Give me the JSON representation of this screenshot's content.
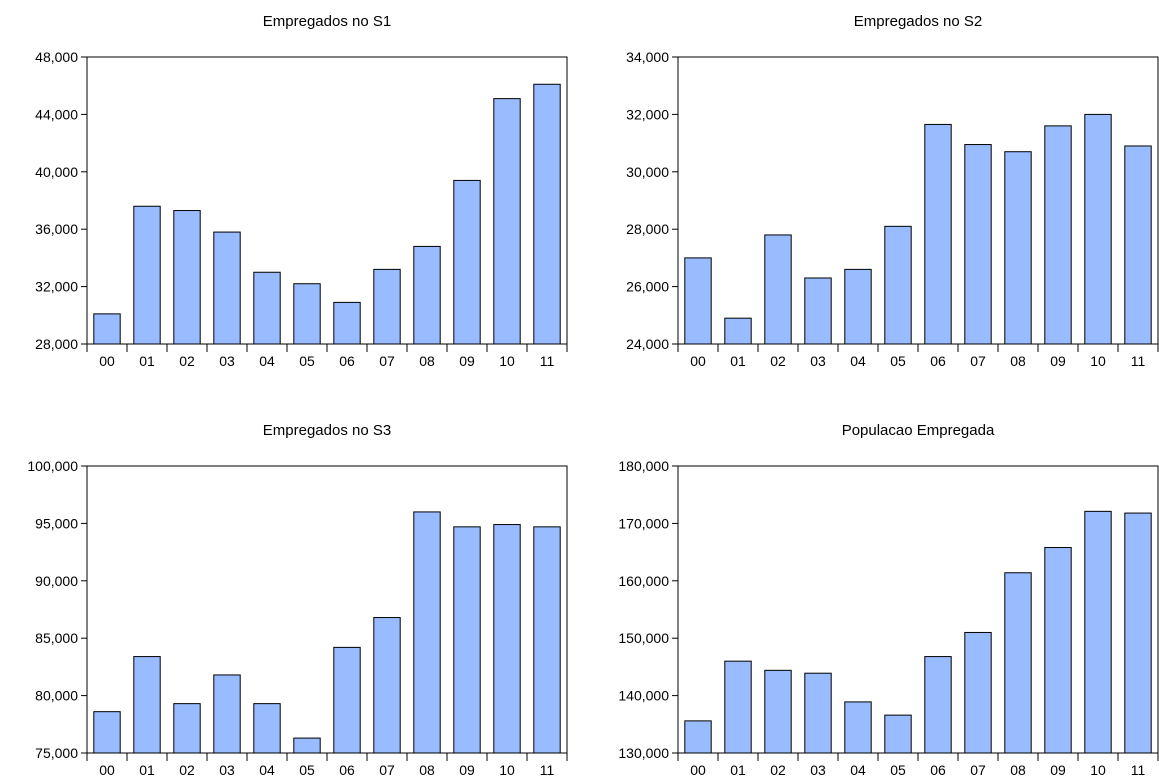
{
  "chart_data": [
    {
      "type": "bar",
      "title": "Empregados no S1",
      "categories": [
        "00",
        "01",
        "02",
        "03",
        "04",
        "05",
        "06",
        "07",
        "08",
        "09",
        "10",
        "11"
      ],
      "values": [
        30100,
        37600,
        37300,
        35800,
        33000,
        32200,
        30900,
        33200,
        34800,
        39400,
        45100,
        46100
      ],
      "ylim": [
        28000,
        48000
      ],
      "yticks": [
        28000,
        32000,
        36000,
        40000,
        44000,
        48000
      ],
      "ytick_labels": [
        "28,000",
        "32,000",
        "36,000",
        "40,000",
        "44,000",
        "48,000"
      ],
      "bar_color": "#99bbff",
      "grid": false
    },
    {
      "type": "bar",
      "title": "Empregados no S2",
      "categories": [
        "00",
        "01",
        "02",
        "03",
        "04",
        "05",
        "06",
        "07",
        "08",
        "09",
        "10",
        "11"
      ],
      "values": [
        27000,
        24900,
        27800,
        26300,
        26600,
        28100,
        31650,
        30950,
        30700,
        31600,
        32000,
        30900
      ],
      "ylim": [
        24000,
        34000
      ],
      "yticks": [
        24000,
        26000,
        28000,
        30000,
        32000,
        34000
      ],
      "ytick_labels": [
        "24,000",
        "26,000",
        "28,000",
        "30,000",
        "32,000",
        "34,000"
      ],
      "bar_color": "#99bbff",
      "grid": false
    },
    {
      "type": "bar",
      "title": "Empregados no S3",
      "categories": [
        "00",
        "01",
        "02",
        "03",
        "04",
        "05",
        "06",
        "07",
        "08",
        "09",
        "10",
        "11"
      ],
      "values": [
        78600,
        83400,
        79300,
        81800,
        79300,
        76300,
        84200,
        86800,
        96000,
        94700,
        94900,
        94700
      ],
      "ylim": [
        75000,
        100000
      ],
      "yticks": [
        75000,
        80000,
        85000,
        90000,
        95000,
        100000
      ],
      "ytick_labels": [
        "75,000",
        "80,000",
        "85,000",
        "90,000",
        "95,000",
        "100,000"
      ],
      "bar_color": "#99bbff",
      "grid": false
    },
    {
      "type": "bar",
      "title": "Populacao Empregada",
      "categories": [
        "00",
        "01",
        "02",
        "03",
        "04",
        "05",
        "06",
        "07",
        "08",
        "09",
        "10",
        "11"
      ],
      "values": [
        135600,
        146000,
        144400,
        143900,
        138900,
        136600,
        146800,
        151000,
        161400,
        165800,
        172100,
        171800
      ],
      "ylim": [
        130000,
        180000
      ],
      "yticks": [
        130000,
        140000,
        150000,
        160000,
        170000,
        180000
      ],
      "ytick_labels": [
        "130,000",
        "140,000",
        "150,000",
        "160,000",
        "170,000",
        "180,000"
      ],
      "bar_color": "#99bbff",
      "grid": false
    }
  ]
}
